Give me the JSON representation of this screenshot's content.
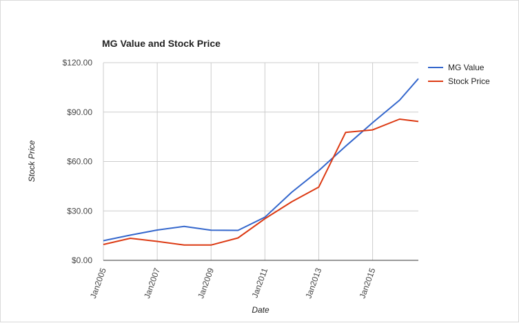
{
  "chart_data": {
    "type": "line",
    "title": "MG Value and Stock Price",
    "xlabel": "Date",
    "ylabel": "Stock Price",
    "x_ticks": [
      "Jan2005",
      "Jan2007",
      "Jan2009",
      "Jan2011",
      "Jan2013",
      "Jan2015"
    ],
    "y_ticks": [
      "$120.00",
      "$90.00",
      "$60.00",
      "$30.00",
      "$0.00"
    ],
    "y_tick_values": [
      120,
      90,
      60,
      30,
      0
    ],
    "ylim": [
      0,
      120
    ],
    "xlim": [
      2005.0,
      2016.7
    ],
    "grid": true,
    "legend_position": "right",
    "x": [
      2005,
      2006,
      2007,
      2008,
      2009,
      2010,
      2011,
      2012,
      2013,
      2014,
      2015,
      2016,
      2016.7
    ],
    "series": [
      {
        "name": "MG Value",
        "color": "#3366cc",
        "values": [
          11.9,
          15.3,
          18.4,
          20.6,
          18.3,
          18.2,
          26.2,
          41.4,
          54.5,
          69.3,
          83.6,
          97.2,
          110.3
        ]
      },
      {
        "name": "Stock Price",
        "color": "#dc3912",
        "values": [
          9.6,
          13.4,
          11.5,
          9.3,
          9.3,
          13.6,
          25.3,
          35.6,
          44.5,
          77.7,
          79.2,
          85.7,
          84.3
        ]
      }
    ]
  }
}
